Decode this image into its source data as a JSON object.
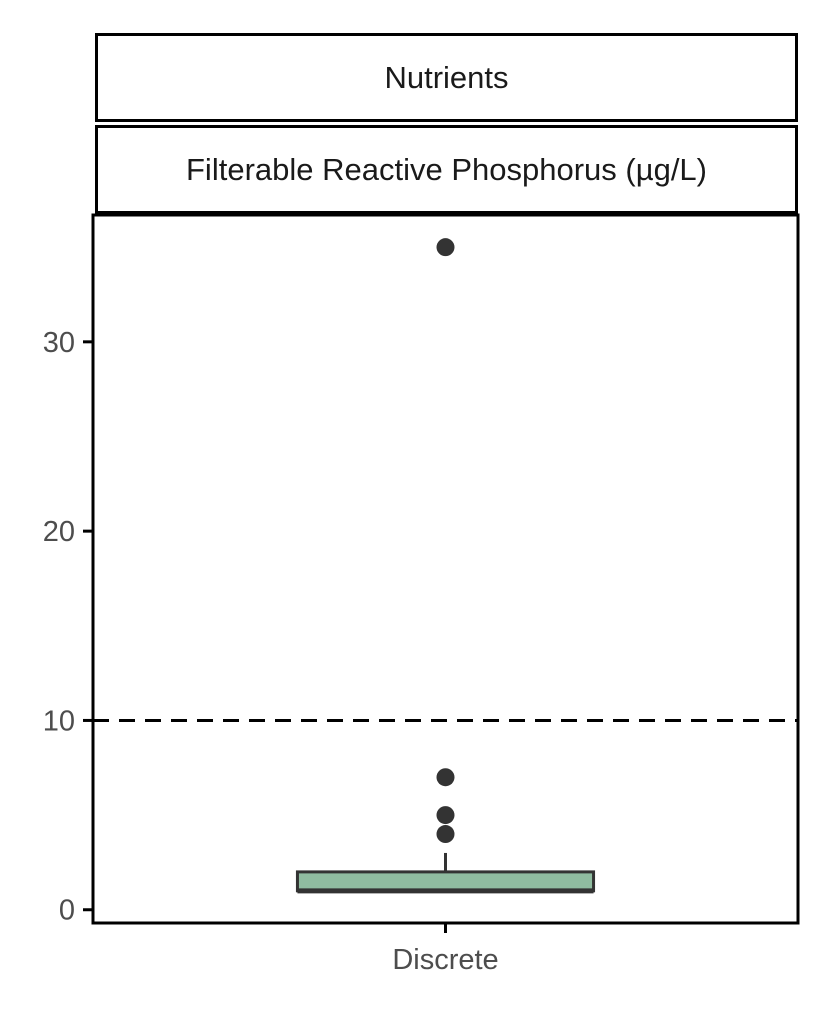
{
  "facet": {
    "top_strip": "Nutrients",
    "bottom_strip": "Filterable Reactive Phosphorus (µg/L)"
  },
  "chart_data": {
    "type": "boxplot",
    "categories": [
      "Discrete"
    ],
    "ylim": [
      -0.7,
      36.7
    ],
    "y_ticks": [
      0,
      10,
      20,
      30
    ],
    "y_tick_labels": [
      "0",
      "10",
      "20",
      "30"
    ],
    "x_tick_labels": [
      "Discrete"
    ],
    "reference_line": {
      "y": 10,
      "style": "dashed"
    },
    "boxes": [
      {
        "category": "Discrete",
        "q1": 1,
        "median": 1,
        "q3": 2,
        "whisker_low": 1,
        "whisker_high": 3,
        "outliers": [
          4,
          5,
          7,
          35
        ],
        "fill": "#8fbca0"
      }
    ],
    "grid": false,
    "xlabel": "",
    "ylabel": ""
  }
}
